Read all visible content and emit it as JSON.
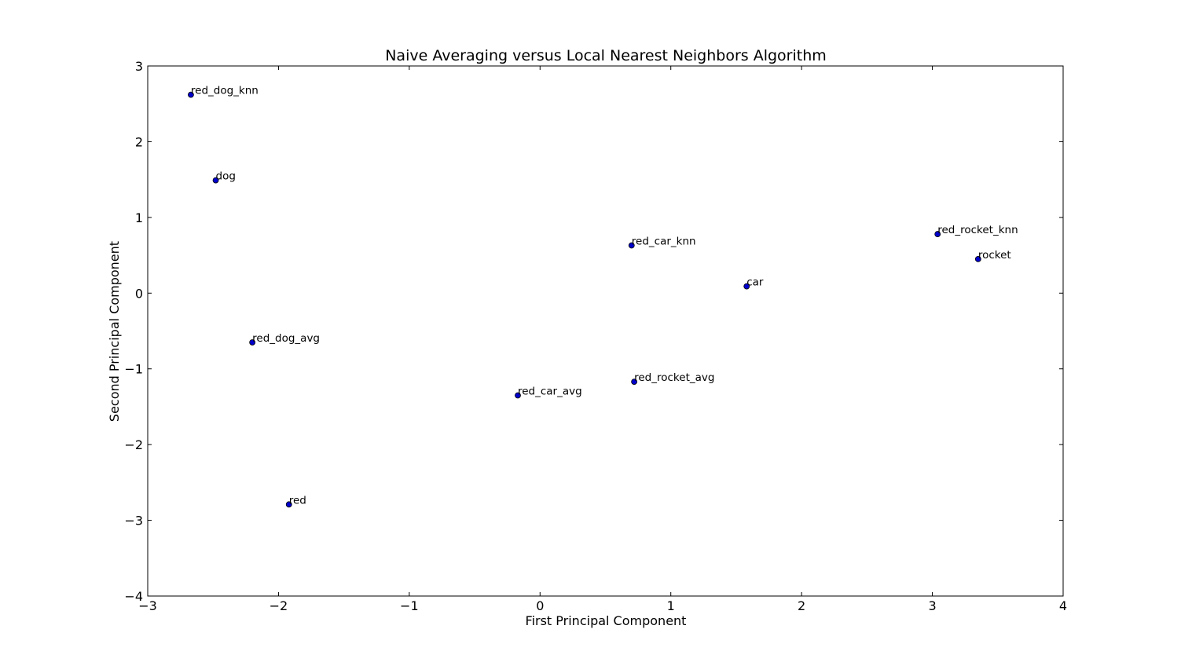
{
  "chart_data": {
    "type": "scatter",
    "title": "Naive Averaging versus Local Nearest Neighbors Algorithm",
    "xlabel": "First Principal Component",
    "ylabel": "Second Principal Component",
    "xlim": [
      -3,
      4
    ],
    "ylim": [
      -4,
      3
    ],
    "xticks": [
      -3,
      -2,
      -1,
      0,
      1,
      2,
      3,
      4
    ],
    "yticks": [
      -4,
      -3,
      -2,
      -1,
      0,
      1,
      2,
      3
    ],
    "grid": false,
    "marker_color": "#0000cc",
    "points": [
      {
        "label": "red_dog_knn",
        "x": -2.67,
        "y": 2.62
      },
      {
        "label": "dog",
        "x": -2.48,
        "y": 1.49
      },
      {
        "label": "red_dog_avg",
        "x": -2.2,
        "y": -0.65
      },
      {
        "label": "red",
        "x": -1.92,
        "y": -2.79
      },
      {
        "label": "red_car_avg",
        "x": -0.17,
        "y": -1.35
      },
      {
        "label": "red_car_knn",
        "x": 0.7,
        "y": 0.63
      },
      {
        "label": "red_rocket_avg",
        "x": 0.72,
        "y": -1.17
      },
      {
        "label": "car",
        "x": 1.58,
        "y": 0.09
      },
      {
        "label": "red_rocket_knn",
        "x": 3.04,
        "y": 0.78
      },
      {
        "label": "rocket",
        "x": 3.35,
        "y": 0.45
      }
    ]
  }
}
